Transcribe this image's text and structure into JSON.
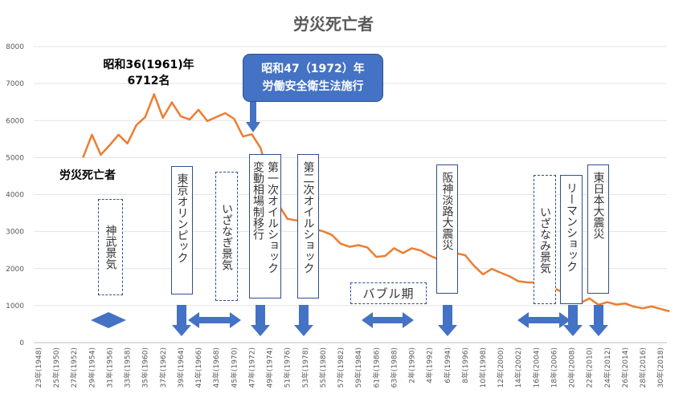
{
  "chart_data": {
    "type": "line",
    "title": "労災死亡者",
    "series_label": "労災死亡者",
    "line_color": "#ed7d31",
    "annotation_color": "#4472c4",
    "ylim": [
      0,
      8000
    ],
    "yticks": [
      0,
      1000,
      2000,
      3000,
      4000,
      5000,
      6000,
      7000,
      8000
    ],
    "grid": true,
    "xticks": [
      "23年(1948)",
      "25年(1950)",
      "27年(1952)",
      "29年(1954)",
      "31年(1956)",
      "33年(1958)",
      "35年(1960)",
      "37年(1962)",
      "39年(1964)",
      "41年(1966)",
      "43年(1968)",
      "45年(1970)",
      "47年(1972)",
      "49年(1974)",
      "51年(1976)",
      "53年(1978)",
      "55年(1980)",
      "57年(1982)",
      "59年(1984)",
      "61年(1986)",
      "63年(1988)",
      "2年(1990)",
      "4年(1992)",
      "6年(1994)",
      "8年(1996)",
      "10年(1998)",
      "12年(2000)",
      "14年(2002)",
      "16年(2004)",
      "18年(2006)",
      "20年(2008)",
      "22年(2010)",
      "24年(2012)",
      "26年(2014)",
      "28年(2016)",
      "30年(2018)"
    ],
    "x": [
      1953,
      1954,
      1955,
      1956,
      1957,
      1958,
      1959,
      1960,
      1961,
      1962,
      1963,
      1964,
      1965,
      1966,
      1967,
      1968,
      1969,
      1970,
      1971,
      1972,
      1973,
      1974,
      1975,
      1976,
      1977,
      1978,
      1979,
      1980,
      1981,
      1982,
      1983,
      1984,
      1985,
      1986,
      1987,
      1988,
      1989,
      1990,
      1991,
      1992,
      1993,
      1994,
      1995,
      1996,
      1997,
      1998,
      1999,
      2000,
      2001,
      2002,
      2003,
      2004,
      2005,
      2006,
      2007,
      2008,
      2009,
      2010,
      2011,
      2012,
      2013,
      2014,
      2015,
      2016,
      2017,
      2018,
      2019
    ],
    "values": [
      5000,
      5618,
      5076,
      5336,
      5618,
      5380,
      5878,
      6095,
      6712,
      6074,
      6490,
      6117,
      6030,
      6290,
      5987,
      6095,
      6200,
      6048,
      5570,
      5631,
      5250,
      4330,
      3725,
      3345,
      3302,
      3326,
      3077,
      3009,
      2912,
      2674,
      2588,
      2635,
      2572,
      2318,
      2342,
      2549,
      2419,
      2550,
      2489,
      2354,
      2245,
      2301,
      2414,
      2363,
      2078,
      1844,
      1992,
      1889,
      1790,
      1658,
      1628,
      1620,
      1514,
      1472,
      1357,
      1268,
      1075,
      1195,
      1024,
      1093,
      1030,
      1057,
      972,
      928,
      978,
      909,
      845
    ],
    "annotations": {
      "peak_line1": "昭和36(1961)年",
      "peak_line2": "6712名",
      "callout_line1": "昭和47（1972）年",
      "callout_line2": "労働安全衛生法施行",
      "jinmu": "神武景気",
      "tokyo_olympic": "東京オリンピック",
      "izanagi": "いざなぎ景気",
      "oil_shock_1": "第一次オイルショック\n変動相場制移行",
      "oil_shock_2": "第二次オイルショック",
      "bubble": "バブル期",
      "hanshin": "阪神淡路大震災",
      "izanami": "いざなみ景気",
      "lehman": "リーマンショック",
      "higashi_nihon": "東日本大震災"
    }
  }
}
